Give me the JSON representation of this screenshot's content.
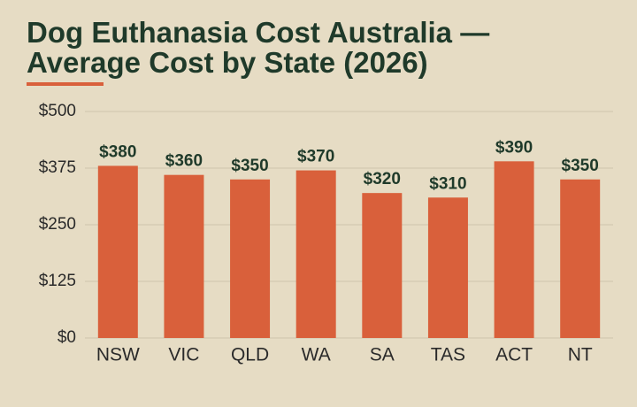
{
  "chart_data": {
    "type": "bar",
    "title": "Dog Euthanasia Cost Australia — Average Cost by State (2026)",
    "categories": [
      "NSW",
      "VIC",
      "QLD",
      "WA",
      "SA",
      "TAS",
      "ACT",
      "NT"
    ],
    "values": [
      380,
      360,
      350,
      370,
      320,
      310,
      390,
      350
    ],
    "value_labels": [
      "$380",
      "$360",
      "$350",
      "$370",
      "$320",
      "$310",
      "$390",
      "$350"
    ],
    "color": "#d9603b",
    "ylim": [
      0,
      500
    ],
    "yticks": [
      {
        "value": 0,
        "label": "$0"
      },
      {
        "value": 125,
        "label": "$125"
      },
      {
        "value": 250,
        "label": "$250"
      },
      {
        "value": 375,
        "label": "$375"
      },
      {
        "value": 500,
        "label": "$500"
      }
    ],
    "grid": true
  }
}
